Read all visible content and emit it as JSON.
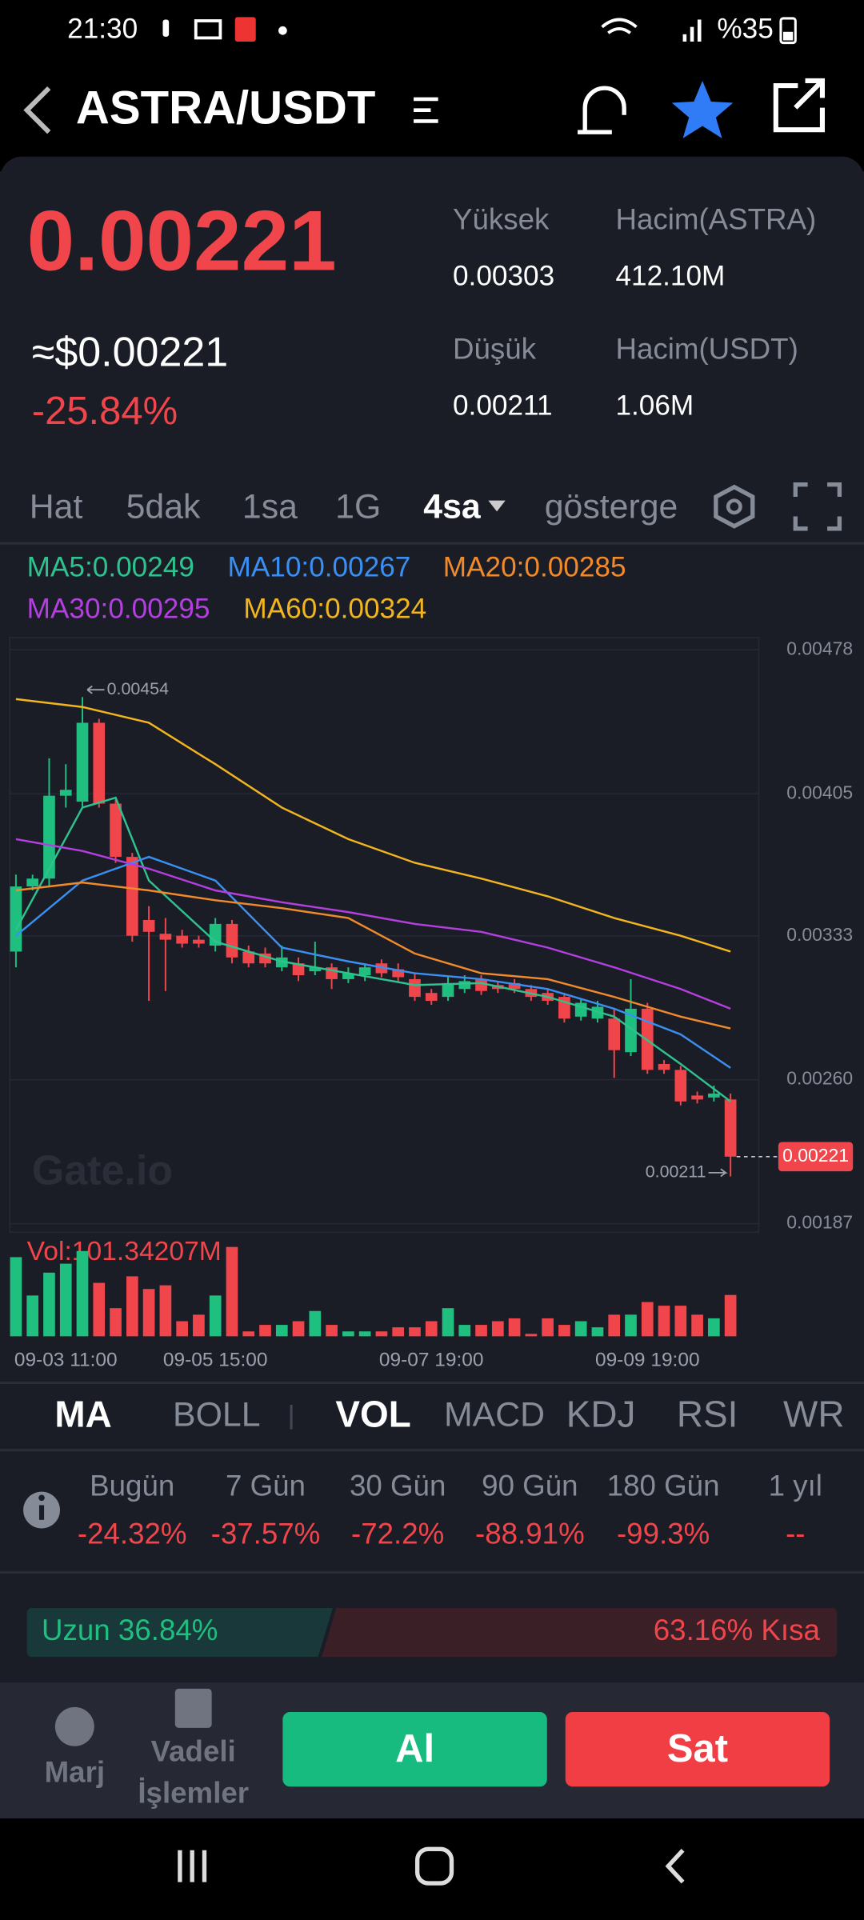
{
  "status_bar": {
    "time": "21:30",
    "battery": "%35"
  },
  "header": {
    "pair": "ASTRA/USDT"
  },
  "ticker": {
    "price": "0.00221",
    "usd_price": "≈$0.00221",
    "change": "-25.84%"
  },
  "stats": [
    {
      "label": "Yüksek",
      "value": "0.00303"
    },
    {
      "label": "Hacim(ASTRA)",
      "value": "412.10M"
    },
    {
      "label": "Düşük",
      "value": "0.00211"
    },
    {
      "label": "Hacim(USDT)",
      "value": "1.06M"
    }
  ],
  "timeframes": [
    "Hat",
    "5dak",
    "1sa",
    "1G",
    "4sa"
  ],
  "active_timeframe": 4,
  "indicator_button": "gösterge",
  "ma_legend": [
    "MA5:0.00249",
    "MA10:0.00267",
    "MA20:0.00285",
    "MA30:0.00295",
    "MA60:0.00324"
  ],
  "chart_data": {
    "type": "candlestick",
    "watermark": "Gate.io",
    "high_annotation": "0.00454",
    "low_annotation": "0.00211",
    "last_price": "0.00221",
    "up_color": "#1fbf7f",
    "down_color": "#f0454a",
    "categories": [
      null,
      null,
      null,
      "09-03 11:00",
      null,
      null,
      null,
      null,
      null,
      null,
      null,
      null,
      "09-05 15:00",
      null,
      null,
      null,
      null,
      null,
      null,
      null,
      null,
      null,
      null,
      null,
      null,
      "09-07 19:00",
      null,
      null,
      null,
      null,
      null,
      null,
      null,
      null,
      null,
      null,
      null,
      null,
      "09-09 19:00",
      null,
      null,
      null,
      null,
      null
    ],
    "open": [
      0.00325,
      0.00358,
      0.00362,
      0.00404,
      0.00401,
      0.00441,
      0.004,
      0.00373,
      0.00341,
      0.00334,
      0.00333,
      0.00331,
      0.00328,
      0.00339,
      0.00325,
      0.00324,
      0.00317,
      0.00319,
      0.00315,
      0.00317,
      0.00311,
      0.00313,
      0.00319,
      0.00316,
      0.00311,
      0.00304,
      0.00302,
      0.00306,
      0.00311,
      0.00308,
      0.00309,
      0.00306,
      0.00304,
      0.00302,
      0.00292,
      0.00291,
      0.00291,
      0.00274,
      0.00296,
      0.00268,
      0.00265,
      0.00252,
      0.00251,
      0.0025
    ],
    "high": [
      0.00364,
      0.00364,
      0.00423,
      0.0042,
      0.00454,
      0.00443,
      0.00402,
      0.00375,
      0.00348,
      0.00342,
      0.00336,
      0.00333,
      0.00342,
      0.00341,
      0.00328,
      0.00327,
      0.00328,
      0.00322,
      0.0033,
      0.00319,
      0.00317,
      0.00319,
      0.00321,
      0.00319,
      0.00314,
      0.00306,
      0.00312,
      0.00313,
      0.00313,
      0.0031,
      0.00311,
      0.00308,
      0.00306,
      0.00304,
      0.00301,
      0.003,
      0.00296,
      0.00311,
      0.00299,
      0.0027,
      0.00267,
      0.00254,
      0.00257,
      0.00253
    ],
    "low": [
      0.00317,
      0.00356,
      0.00358,
      0.00398,
      0.00398,
      0.00398,
      0.0037,
      0.0033,
      0.003,
      0.00305,
      0.00327,
      0.00327,
      0.00325,
      0.00319,
      0.00317,
      0.00317,
      0.00315,
      0.0031,
      0.00313,
      0.00306,
      0.00309,
      0.0031,
      0.00312,
      0.0031,
      0.003,
      0.00298,
      0.003,
      0.00304,
      0.00303,
      0.00304,
      0.00304,
      0.003,
      0.00298,
      0.00289,
      0.0029,
      0.00289,
      0.00261,
      0.00272,
      0.00263,
      0.00263,
      0.00247,
      0.00248,
      0.00249,
      0.00211
    ],
    "close": [
      0.00358,
      0.00362,
      0.00404,
      0.00407,
      0.00441,
      0.004,
      0.00373,
      0.00333,
      0.00335,
      0.00331,
      0.00329,
      0.00329,
      0.00339,
      0.00322,
      0.00319,
      0.00319,
      0.00322,
      0.00313,
      0.00317,
      0.00311,
      0.00314,
      0.00317,
      0.00314,
      0.00312,
      0.00302,
      0.003,
      0.00309,
      0.0031,
      0.00305,
      0.00306,
      0.00306,
      0.00302,
      0.003,
      0.00291,
      0.00299,
      0.00297,
      0.00275,
      0.00296,
      0.00265,
      0.00265,
      0.00249,
      0.0025,
      0.00253,
      0.00221
    ],
    "ylim": [
      0.00187,
      0.00478
    ],
    "yticks": [
      0.00478,
      0.00405,
      0.00333,
      {
        "value": 0.0026,
        "label": "0.00260"
      },
      0.00187
    ],
    "ma": [
      {
        "color": "#2ec28e",
        "x": [
          0,
          4,
          6,
          8,
          12,
          16,
          20,
          24,
          28,
          32,
          36,
          40,
          43
        ],
        "values": [
          0.00336,
          0.00398,
          0.00403,
          0.00361,
          0.0033,
          0.0032,
          0.00314,
          0.00308,
          0.00309,
          0.00302,
          0.00292,
          0.00268,
          0.00249
        ]
      },
      {
        "color": "#3a8ff2",
        "x": [
          0,
          4,
          8,
          12,
          16,
          20,
          24,
          28,
          32,
          36,
          40,
          43
        ],
        "values": [
          0.00333,
          0.00361,
          0.00373,
          0.00361,
          0.00327,
          0.0032,
          0.00314,
          0.00311,
          0.00306,
          0.00296,
          0.00283,
          0.00266
        ]
      },
      {
        "color": "#f08a2a",
        "x": [
          0,
          4,
          8,
          12,
          16,
          20,
          24,
          28,
          32,
          36,
          40,
          43
        ],
        "values": [
          0.00356,
          0.0036,
          0.00356,
          0.00351,
          0.00347,
          0.00342,
          0.00324,
          0.00314,
          0.00311,
          0.00302,
          0.00292,
          0.00286
        ]
      },
      {
        "color": "#b43fe0",
        "x": [
          0,
          4,
          8,
          12,
          16,
          20,
          24,
          28,
          32,
          36,
          40,
          43
        ],
        "values": [
          0.00382,
          0.00376,
          0.00367,
          0.00356,
          0.0035,
          0.00345,
          0.00339,
          0.00335,
          0.00327,
          0.00317,
          0.00306,
          0.00296
        ]
      },
      {
        "color": "#f3b51f",
        "x": [
          0,
          4,
          8,
          12,
          16,
          20,
          24,
          28,
          32,
          36,
          40,
          43
        ],
        "values": [
          0.00453,
          0.00449,
          0.00441,
          0.0042,
          0.00398,
          0.00382,
          0.0037,
          0.00362,
          0.00353,
          0.00342,
          0.00333,
          0.00325
        ]
      }
    ],
    "volume": {
      "label": "Vol:101.34207M",
      "ylim": [
        0,
        240
      ],
      "values": [
        194,
        100,
        156,
        178,
        209,
        131,
        69,
        147,
        116,
        125,
        37,
        53,
        100,
        219,
        12,
        28,
        28,
        37,
        62,
        28,
        12,
        12,
        12,
        22,
        22,
        37,
        69,
        28,
        28,
        37,
        44,
        6,
        44,
        28,
        37,
        22,
        53,
        53,
        84,
        75,
        75,
        53,
        44,
        101.34207
      ]
    }
  },
  "indicator_tabs": [
    "MA",
    "BOLL",
    "VOL",
    "MACD",
    "KDJ",
    "RSI",
    "WR"
  ],
  "performance": {
    "periods": [
      "Bugün",
      "7 Gün",
      "30 Gün",
      "90 Gün",
      "180 Gün",
      "1 yıl"
    ],
    "values": [
      "-24.32%",
      "-37.57%",
      "-72.2%",
      "-88.91%",
      "-99.3%",
      "--"
    ]
  },
  "ratio": {
    "values": [
      36.84,
      63.16
    ],
    "value_labels": [
      "Uzun 36.84%",
      "63.16% Kısa"
    ]
  },
  "bottom_nav": {
    "margin": "Marj",
    "futures": [
      "Vadeli",
      "İşlemler"
    ],
    "buy": "Al",
    "sell": "Sat"
  }
}
